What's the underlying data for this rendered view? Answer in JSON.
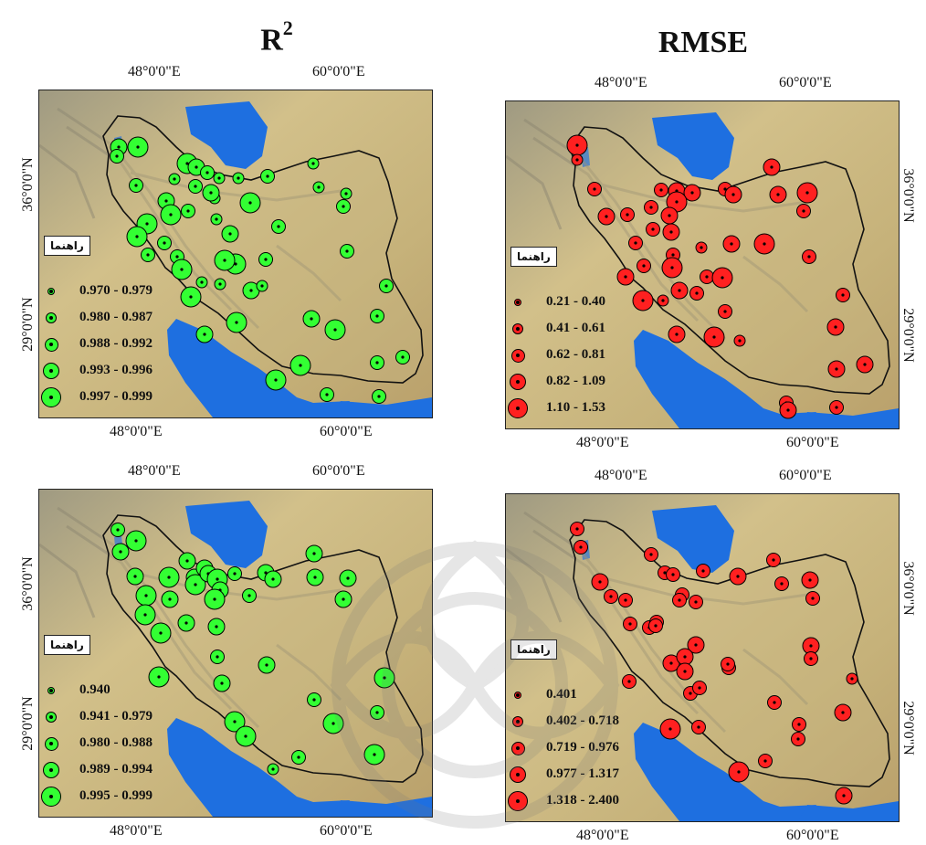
{
  "titles": {
    "left_base": "R",
    "left_sup": "2",
    "right": "RMSE"
  },
  "axis_ticks": {
    "lon_48": "48°0'0\"E",
    "lon_60": "60°0'0\"E",
    "lat_36": "36°0'0\"N",
    "lat_29": "29°0'0\"N"
  },
  "legend_title": "راهنما",
  "colors": {
    "green": "#33ff33",
    "red": "#ff2020",
    "water": "#1e6fe0"
  },
  "panels": [
    {
      "id": "r2-top",
      "metric": "R2",
      "legend": [
        "0.970 - 0.979",
        "0.980 - 0.987",
        "0.988 - 0.992",
        "0.993 - 0.996",
        "0.997 - 0.999"
      ]
    },
    {
      "id": "rmse-top",
      "metric": "RMSE",
      "legend": [
        "0.21 - 0.40",
        "0.41 - 0.61",
        "0.62 - 0.81",
        "0.82 - 1.09",
        "1.10 - 1.53"
      ]
    },
    {
      "id": "r2-bottom",
      "metric": "R2",
      "legend": [
        "0.940",
        "0.941 - 0.979",
        "0.980 - 0.988",
        "0.989 - 0.994",
        "0.995 - 0.999"
      ]
    },
    {
      "id": "rmse-bottom",
      "metric": "RMSE",
      "legend": [
        "0.401",
        "0.402 - 0.718",
        "0.719 - 0.976",
        "0.977 - 1.317",
        "1.318 - 2.400"
      ]
    }
  ]
}
